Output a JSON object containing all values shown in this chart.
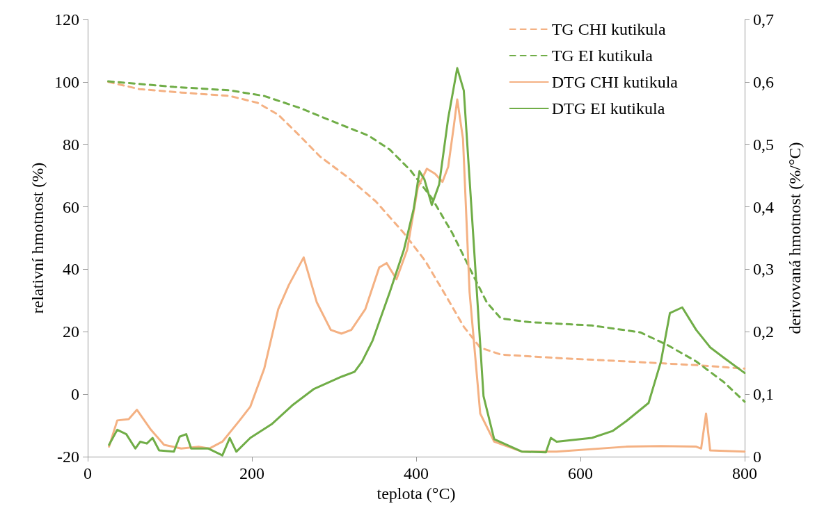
{
  "chart_data": {
    "type": "line",
    "xlabel": "teplota (°C)",
    "ylabel": "relativní hmotnost (%)",
    "y2label": "derivovaná hmotnost (%/°C)",
    "xlim": [
      0,
      800
    ],
    "xticks": [
      0,
      200,
      400,
      600,
      800
    ],
    "ylim": [
      -20,
      120
    ],
    "yticks": [
      -20,
      0,
      20,
      40,
      60,
      80,
      100,
      120
    ],
    "y2lim": [
      0,
      0.7
    ],
    "y2ticks": [
      0,
      {
        "value": 0.1,
        "label": "0,1"
      },
      {
        "value": 0.2,
        "label": "0,2"
      },
      {
        "value": 0.3,
        "label": "0,3"
      },
      {
        "value": 0.4,
        "label": "0,4"
      },
      {
        "value": 0.5,
        "label": "0,5"
      },
      {
        "value": 0.6,
        "label": "0,6"
      },
      {
        "value": 0.7,
        "label": "0,7"
      }
    ],
    "grid": false,
    "legend": "top right",
    "marker": "none",
    "series": [
      {
        "name": "TG CHI kutikula",
        "color": "#f4b183",
        "line_style": "dashed",
        "x": [
          25,
          63,
          114,
          173,
          207,
          232,
          258,
          283,
          317,
          351,
          385,
          411,
          436,
          458,
          478,
          503,
          571,
          656,
          741,
          800
        ],
        "values": [
          100,
          97.7,
          96.6,
          95.5,
          93.3,
          89.5,
          82.8,
          76.1,
          69.4,
          61.7,
          51.6,
          42.7,
          31.6,
          21.6,
          14.9,
          12.7,
          11.6,
          10.5,
          9.3,
          8.2
        ]
      },
      {
        "name": "TG EI kutikula",
        "color": "#70ad47",
        "line_style": "dashed",
        "x": [
          25,
          105,
          173,
          215,
          258,
          300,
          342,
          368,
          393,
          419,
          444,
          469,
          486,
          503,
          537,
          614,
          673,
          707,
          741,
          775,
          800
        ],
        "values": [
          100.2,
          98.4,
          97.3,
          95.5,
          91.7,
          87.2,
          82.8,
          78.3,
          71.7,
          62.8,
          51.6,
          38.3,
          29.4,
          24.3,
          23.1,
          22,
          19.8,
          15.6,
          10.5,
          3.8,
          -2.4
        ]
      },
      {
        "name": "DTG CHI kutikula",
        "color": "#f4b183",
        "line_style": "solid",
        "axis": "y2",
        "x": [
          26,
          36,
          50,
          60,
          77,
          93,
          114,
          135,
          148,
          164,
          185,
          198,
          215,
          232,
          245,
          263,
          279,
          296,
          309,
          321,
          338,
          355,
          364,
          376,
          389,
          402,
          413,
          423,
          432,
          439,
          446,
          450,
          457,
          465,
          478,
          495,
          529,
          571,
          656,
          698,
          741,
          747,
          753,
          758,
          800
        ],
        "values": [
          0.016,
          0.058,
          0.06,
          0.075,
          0.043,
          0.019,
          0.013,
          0.016,
          0.013,
          0.024,
          0.058,
          0.08,
          0.141,
          0.236,
          0.275,
          0.319,
          0.247,
          0.203,
          0.197,
          0.203,
          0.236,
          0.303,
          0.31,
          0.284,
          0.331,
          0.431,
          0.461,
          0.453,
          0.44,
          0.464,
          0.531,
          0.572,
          0.509,
          0.264,
          0.069,
          0.024,
          0.008,
          0.008,
          0.016,
          0.017,
          0.016,
          0.013,
          0.069,
          0.01,
          0.008
        ]
      },
      {
        "name": "DTG EI kutikula",
        "color": "#70ad47",
        "line_style": "solid",
        "axis": "y2",
        "x": [
          26,
          36,
          47,
          58,
          64,
          72,
          79,
          87,
          105,
          112,
          120,
          126,
          147,
          164,
          173,
          181,
          198,
          224,
          249,
          275,
          309,
          325,
          334,
          347,
          368,
          385,
          397,
          404,
          410,
          419,
          428,
          439,
          450,
          458,
          469,
          482,
          495,
          529,
          558,
          564,
          571,
          614,
          639,
          656,
          683,
          698,
          709,
          724,
          741,
          758,
          775,
          800
        ],
        "values": [
          0.019,
          0.043,
          0.036,
          0.013,
          0.024,
          0.021,
          0.03,
          0.01,
          0.008,
          0.032,
          0.036,
          0.013,
          0.013,
          0.002,
          0.03,
          0.008,
          0.03,
          0.052,
          0.082,
          0.108,
          0.128,
          0.136,
          0.152,
          0.186,
          0.264,
          0.331,
          0.397,
          0.457,
          0.444,
          0.403,
          0.436,
          0.542,
          0.622,
          0.586,
          0.364,
          0.097,
          0.028,
          0.008,
          0.007,
          0.03,
          0.024,
          0.03,
          0.041,
          0.057,
          0.086,
          0.152,
          0.23,
          0.239,
          0.203,
          0.175,
          0.158,
          0.134
        ]
      }
    ]
  }
}
